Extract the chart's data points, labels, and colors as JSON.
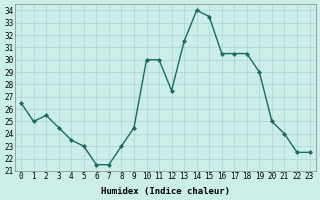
{
  "x": [
    0,
    1,
    2,
    3,
    4,
    5,
    6,
    7,
    8,
    9,
    10,
    11,
    12,
    13,
    14,
    15,
    16,
    17,
    18,
    19,
    20,
    21,
    22,
    23
  ],
  "y": [
    26.5,
    25.0,
    25.5,
    24.5,
    23.5,
    23.0,
    21.5,
    21.5,
    23.0,
    24.5,
    30.0,
    30.0,
    27.5,
    31.5,
    34.0,
    33.5,
    30.5,
    30.5,
    30.5,
    29.0,
    25.0,
    24.0,
    22.5,
    22.5
  ],
  "xlabel": "Humidex (Indice chaleur)",
  "ylabel": "",
  "xlim": [
    -0.5,
    23.5
  ],
  "ylim": [
    21,
    34.5
  ],
  "yticks": [
    21,
    22,
    23,
    24,
    25,
    26,
    27,
    28,
    29,
    30,
    31,
    32,
    33,
    34
  ],
  "xticks": [
    0,
    1,
    2,
    3,
    4,
    5,
    6,
    7,
    8,
    9,
    10,
    11,
    12,
    13,
    14,
    15,
    16,
    17,
    18,
    19,
    20,
    21,
    22,
    23
  ],
  "line_color": "#1a6b5e",
  "marker": "D",
  "marker_size": 2.0,
  "bg_color": "#cceee8",
  "grid_color": "#b0d8d8",
  "font_family": "monospace",
  "tick_fontsize": 5.5,
  "xlabel_fontsize": 6.5
}
